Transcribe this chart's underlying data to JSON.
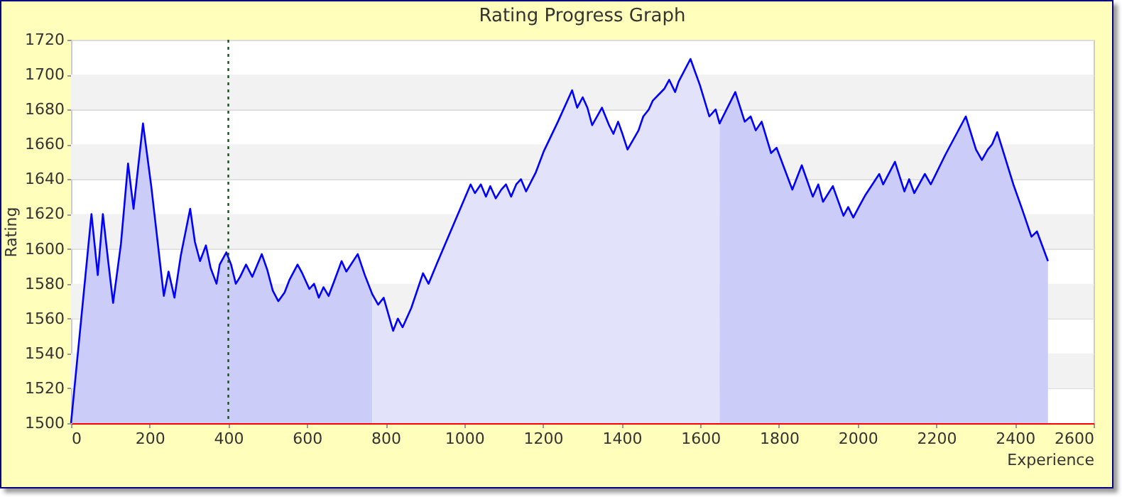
{
  "chart_data": {
    "type": "line",
    "title": "Rating Progress Graph",
    "xlabel": "Experience",
    "ylabel": "Rating",
    "xlim": [
      0,
      2600
    ],
    "xticks": [
      0,
      200,
      400,
      600,
      800,
      1000,
      1200,
      1400,
      1600,
      1800,
      2000,
      2200,
      2400,
      2600
    ],
    "ylim": [
      1500,
      1720
    ],
    "yticks": [
      1500,
      1520,
      1540,
      1560,
      1580,
      1600,
      1620,
      1640,
      1660,
      1680,
      1700,
      1720
    ],
    "grid": "y",
    "ref_lines": [
      {
        "axis": "x",
        "value": 400,
        "color": "#1a4d1a",
        "line_style": "dotted"
      }
    ],
    "series": [
      {
        "type": "area",
        "color": "#ccccf8",
        "x": [
          0,
          52,
          68,
          81,
          95,
          107,
          127,
          145,
          159,
          183,
          204,
          236,
          248,
          263,
          279,
          303,
          315,
          328,
          343,
          355,
          370,
          378,
          395,
          407,
          419,
          430,
          445,
          461,
          485,
          499,
          513,
          527,
          543,
          555,
          576,
          588,
          606,
          618,
          630,
          642,
          655,
          670,
          688,
          700,
          729,
          747,
          766
        ],
        "values": [
          1500,
          1620,
          1585,
          1620,
          1592,
          1569,
          1603,
          1649,
          1623,
          1672,
          1636,
          1573,
          1587,
          1572,
          1596,
          1623,
          1604,
          1593,
          1602,
          1589,
          1580,
          1591,
          1598,
          1591,
          1580,
          1584,
          1591,
          1584,
          1597,
          1588,
          1576,
          1570,
          1575,
          1582,
          1591,
          1586,
          1577,
          1580,
          1572,
          1578,
          1573,
          1582,
          1593,
          1587,
          1597,
          1585,
          1574
        ]
      },
      {
        "type": "area",
        "color": "#e2e2fa",
        "x": [
          766,
          781,
          795,
          819,
          831,
          843,
          865,
          895,
          909,
          931,
          1016,
          1027,
          1042,
          1055,
          1066,
          1080,
          1094,
          1106,
          1119,
          1132,
          1144,
          1157,
          1182,
          1202,
          1238,
          1274,
          1287,
          1301,
          1313,
          1325,
          1350,
          1368,
          1379,
          1391,
          1402,
          1415,
          1443,
          1455,
          1469,
          1479,
          1509,
          1521,
          1536,
          1545,
          1575,
          1599,
          1623,
          1639,
          1649
        ],
        "values": [
          1574,
          1568,
          1572,
          1553,
          1560,
          1555,
          1566,
          1586,
          1580,
          1592,
          1637,
          1632,
          1637,
          1630,
          1636,
          1629,
          1634,
          1637,
          1630,
          1637,
          1640,
          1633,
          1644,
          1656,
          1673,
          1691,
          1681,
          1687,
          1681,
          1671,
          1681,
          1671,
          1666,
          1673,
          1666,
          1657,
          1668,
          1676,
          1680,
          1685,
          1692,
          1697,
          1690,
          1696,
          1709,
          1694,
          1676,
          1680,
          1672
        ]
      },
      {
        "type": "area",
        "color": "#ccccf8",
        "x": [
          1649,
          1689,
          1713,
          1728,
          1741,
          1756,
          1780,
          1794,
          1834,
          1858,
          1886,
          1900,
          1912,
          1937,
          1964,
          1976,
          1989,
          2003,
          2020,
          2055,
          2065,
          2095,
          2119,
          2131,
          2144,
          2171,
          2186,
          2223,
          2275,
          2301,
          2316,
          2331,
          2342,
          2355,
          2396,
          2418,
          2442,
          2456,
          2484
        ],
        "values": [
          1672,
          1690,
          1673,
          1676,
          1668,
          1673,
          1655,
          1658,
          1634,
          1648,
          1630,
          1637,
          1627,
          1636,
          1619,
          1624,
          1618,
          1624,
          1631,
          1643,
          1637,
          1650,
          1633,
          1640,
          1632,
          1643,
          1637,
          1654,
          1676,
          1657,
          1651,
          1657,
          1660,
          1667,
          1637,
          1623,
          1607,
          1610,
          1593
        ]
      },
      {
        "type": "line",
        "color": "#0000ff",
        "x": [
          0,
          52,
          68,
          81,
          95,
          107,
          127,
          145,
          159,
          183,
          204,
          236,
          248,
          263,
          279,
          303,
          315,
          328,
          343,
          355,
          370,
          378,
          395,
          407,
          419,
          430,
          445,
          461,
          485,
          499,
          513,
          527,
          543,
          555,
          576,
          588,
          606,
          618,
          630,
          642,
          655,
          670,
          688,
          700,
          729,
          747,
          766,
          781,
          795,
          819,
          831,
          843,
          865,
          895,
          909,
          931,
          1016,
          1027,
          1042,
          1055,
          1066,
          1080,
          1094,
          1106,
          1119,
          1132,
          1144,
          1157,
          1182,
          1202,
          1238,
          1274,
          1287,
          1301,
          1313,
          1325,
          1350,
          1368,
          1379,
          1391,
          1402,
          1415,
          1443,
          1455,
          1469,
          1479,
          1509,
          1521,
          1536,
          1545,
          1575,
          1599,
          1623,
          1639,
          1649,
          1689,
          1713,
          1728,
          1741,
          1756,
          1780,
          1794,
          1834,
          1858,
          1886,
          1900,
          1912,
          1937,
          1964,
          1976,
          1989,
          2003,
          2020,
          2055,
          2065,
          2095,
          2119,
          2131,
          2144,
          2171,
          2186,
          2223,
          2275,
          2301,
          2316,
          2331,
          2342,
          2355,
          2396,
          2418,
          2442,
          2456,
          2484
        ],
        "values": [
          1500,
          1620,
          1585,
          1620,
          1592,
          1569,
          1603,
          1649,
          1623,
          1672,
          1636,
          1573,
          1587,
          1572,
          1596,
          1623,
          1604,
          1593,
          1602,
          1589,
          1580,
          1591,
          1598,
          1591,
          1580,
          1584,
          1591,
          1584,
          1597,
          1588,
          1576,
          1570,
          1575,
          1582,
          1591,
          1586,
          1577,
          1580,
          1572,
          1578,
          1573,
          1582,
          1593,
          1587,
          1597,
          1585,
          1574,
          1568,
          1572,
          1553,
          1560,
          1555,
          1566,
          1586,
          1580,
          1592,
          1637,
          1632,
          1637,
          1630,
          1636,
          1629,
          1634,
          1637,
          1630,
          1637,
          1640,
          1633,
          1644,
          1656,
          1673,
          1691,
          1681,
          1687,
          1681,
          1671,
          1681,
          1671,
          1666,
          1673,
          1666,
          1657,
          1668,
          1676,
          1680,
          1685,
          1692,
          1697,
          1690,
          1696,
          1709,
          1694,
          1676,
          1680,
          1672,
          1690,
          1673,
          1676,
          1668,
          1673,
          1655,
          1658,
          1634,
          1648,
          1630,
          1637,
          1627,
          1636,
          1619,
          1624,
          1618,
          1624,
          1631,
          1643,
          1637,
          1650,
          1633,
          1640,
          1632,
          1643,
          1637,
          1654,
          1676,
          1657,
          1651,
          1657,
          1660,
          1667,
          1637,
          1623,
          1607,
          1610,
          1593
        ]
      }
    ]
  }
}
